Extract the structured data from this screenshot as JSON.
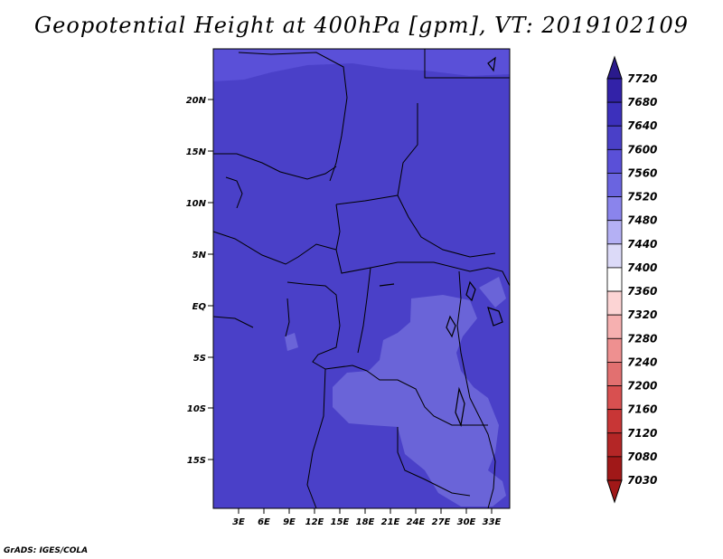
{
  "title": "Geopotential Height at 400hPa [gpm], VT: 2019102109",
  "credit": "GrADS: IGES/COLA",
  "map": {
    "lat_labels": [
      "20N",
      "15N",
      "10N",
      "5N",
      "EQ",
      "5S",
      "10S",
      "15S"
    ],
    "lon_labels": [
      "3E",
      "6E",
      "9E",
      "12E",
      "15E",
      "18E",
      "21E",
      "24E",
      "27E",
      "30E",
      "33E"
    ],
    "colors": {
      "base_fill": "#4a40c8",
      "higher_fill": "#5a50d8",
      "lighter_fill": "#6a64d8",
      "border_line": "#000000"
    }
  },
  "colorbar": {
    "levels": [
      "7720",
      "7680",
      "7640",
      "7600",
      "7560",
      "7520",
      "7480",
      "7440",
      "7400",
      "7360",
      "7320",
      "7280",
      "7240",
      "7200",
      "7160",
      "7120",
      "7080",
      "7030"
    ],
    "colors": [
      "#2a1a8c",
      "#3222a8",
      "#3c30bc",
      "#4a40c8",
      "#5a50d8",
      "#6a64e0",
      "#8a84ec",
      "#b4b0f4",
      "#dcdaf8",
      "#ffffff",
      "#fcd4d4",
      "#f6b0b0",
      "#ee9090",
      "#e27070",
      "#d85050",
      "#c83636",
      "#b42626",
      "#a01818"
    ]
  }
}
